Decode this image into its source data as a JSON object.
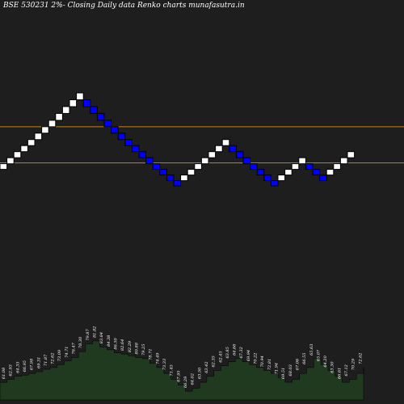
{
  "chart_data": {
    "type": "renko",
    "title": "BSE 530231 2%-  Closing Daily data  Renko  charts munafasutra.in",
    "y_range": [
      30,
      115
    ],
    "support_resistance_lines": [
      81,
      72
    ],
    "colors": {
      "background": "#1e1e1e",
      "up_brick": "#ffffff",
      "down_brick": "#0000ff",
      "brick_border": "#000000",
      "level_line": "#c8801e",
      "volume_area": "#1f3a1f",
      "volume_outline": "#000000"
    },
    "bricks": [
      {
        "dir": "up",
        "low": 70.4,
        "high": 71.8
      },
      {
        "dir": "up",
        "low": 71.8,
        "high": 73.3
      },
      {
        "dir": "up",
        "low": 73.3,
        "high": 74.8
      },
      {
        "dir": "up",
        "low": 74.8,
        "high": 76.3
      },
      {
        "dir": "up",
        "low": 76.3,
        "high": 77.8
      },
      {
        "dir": "up",
        "low": 77.8,
        "high": 79.4
      },
      {
        "dir": "up",
        "low": 79.4,
        "high": 81.0
      },
      {
        "dir": "up",
        "low": 81.0,
        "high": 82.6
      },
      {
        "dir": "up",
        "low": 82.6,
        "high": 84.3
      },
      {
        "dir": "up",
        "low": 84.3,
        "high": 86.0
      },
      {
        "dir": "up",
        "low": 86.0,
        "high": 87.7
      },
      {
        "dir": "up",
        "low": 87.7,
        "high": 89.4
      },
      {
        "dir": "down",
        "low": 86.0,
        "high": 87.7
      },
      {
        "dir": "down",
        "low": 84.3,
        "high": 86.0
      },
      {
        "dir": "down",
        "low": 82.6,
        "high": 84.3
      },
      {
        "dir": "down",
        "low": 81.0,
        "high": 82.6
      },
      {
        "dir": "down",
        "low": 79.4,
        "high": 81.0
      },
      {
        "dir": "down",
        "low": 77.8,
        "high": 79.4
      },
      {
        "dir": "down",
        "low": 76.3,
        "high": 77.8
      },
      {
        "dir": "down",
        "low": 74.8,
        "high": 76.3
      },
      {
        "dir": "down",
        "low": 73.3,
        "high": 74.8
      },
      {
        "dir": "down",
        "low": 71.8,
        "high": 73.3
      },
      {
        "dir": "down",
        "low": 70.4,
        "high": 71.8
      },
      {
        "dir": "down",
        "low": 69.0,
        "high": 70.4
      },
      {
        "dir": "down",
        "low": 67.6,
        "high": 69.0
      },
      {
        "dir": "down",
        "low": 66.3,
        "high": 67.6
      },
      {
        "dir": "up",
        "low": 67.6,
        "high": 69.0
      },
      {
        "dir": "up",
        "low": 69.0,
        "high": 70.4
      },
      {
        "dir": "up",
        "low": 70.4,
        "high": 71.8
      },
      {
        "dir": "up",
        "low": 71.8,
        "high": 73.3
      },
      {
        "dir": "up",
        "low": 73.3,
        "high": 74.8
      },
      {
        "dir": "up",
        "low": 74.8,
        "high": 76.3
      },
      {
        "dir": "up",
        "low": 76.3,
        "high": 77.8
      },
      {
        "dir": "down",
        "low": 74.8,
        "high": 76.3
      },
      {
        "dir": "down",
        "low": 73.3,
        "high": 74.8
      },
      {
        "dir": "down",
        "low": 71.8,
        "high": 73.3
      },
      {
        "dir": "down",
        "low": 70.4,
        "high": 71.8
      },
      {
        "dir": "down",
        "low": 69.0,
        "high": 70.4
      },
      {
        "dir": "down",
        "low": 67.6,
        "high": 69.0
      },
      {
        "dir": "down",
        "low": 66.3,
        "high": 67.6
      },
      {
        "dir": "up",
        "low": 67.6,
        "high": 69.0
      },
      {
        "dir": "up",
        "low": 69.0,
        "high": 70.4
      },
      {
        "dir": "up",
        "low": 70.4,
        "high": 71.8
      },
      {
        "dir": "up",
        "low": 71.8,
        "high": 73.3
      },
      {
        "dir": "down",
        "low": 70.4,
        "high": 71.8
      },
      {
        "dir": "down",
        "low": 69.0,
        "high": 70.4
      },
      {
        "dir": "down",
        "low": 67.6,
        "high": 69.0
      },
      {
        "dir": "up",
        "low": 69.0,
        "high": 70.4
      },
      {
        "dir": "up",
        "low": 70.4,
        "high": 71.8
      },
      {
        "dir": "up",
        "low": 71.8,
        "high": 73.3
      },
      {
        "dir": "up",
        "low": 73.3,
        "high": 74.8
      }
    ],
    "volume_levels": [
      0.3,
      0.35,
      0.4,
      0.42,
      0.45,
      0.48,
      0.52,
      0.55,
      0.6,
      0.66,
      0.72,
      0.82,
      0.95,
      1.0,
      0.9,
      0.85,
      0.8,
      0.78,
      0.75,
      0.72,
      0.7,
      0.62,
      0.55,
      0.45,
      0.35,
      0.25,
      0.15,
      0.2,
      0.3,
      0.4,
      0.5,
      0.58,
      0.65,
      0.7,
      0.65,
      0.6,
      0.55,
      0.5,
      0.45,
      0.38,
      0.3,
      0.35,
      0.45,
      0.55,
      0.7,
      0.6,
      0.5,
      0.4,
      0.3,
      0.35,
      0.45,
      0.55
    ],
    "price_labels": [
      "61.08",
      "62.93",
      "64.35",
      "66.95",
      "67.98",
      "69.31",
      "71.87",
      "72.62",
      "73.09",
      "74.71",
      "76.47",
      "78.30",
      "79.87",
      "81.82",
      "83.84",
      "84.38",
      "86.50",
      "82.64",
      "82.29",
      "80.88",
      "79.25",
      "78.71",
      "74.49",
      "73.33",
      "71.45",
      "67.95",
      "66.29",
      "64.02",
      "63.50",
      "63.42",
      "62.35",
      "62.45",
      "63.85",
      "64.66",
      "67.32",
      "69.94",
      "70.22",
      "70.94",
      "72.81",
      "71.94",
      "69.51",
      "68.03",
      "67.06",
      "66.55",
      "65.63",
      "65.07",
      "64.20",
      "63.30",
      "66.61",
      "67.12",
      "70.29",
      "72.62"
    ]
  }
}
